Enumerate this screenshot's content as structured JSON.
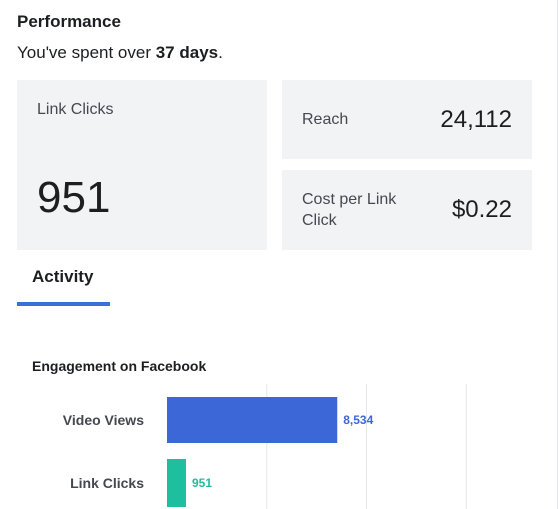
{
  "performance": {
    "title": "Performance",
    "spent_prefix": "You've spent over ",
    "spent_value": "37 days",
    "spent_suffix": "."
  },
  "metrics": {
    "link_clicks": {
      "label": "Link Clicks",
      "value": "951"
    },
    "reach": {
      "label": "Reach",
      "value": "24,112"
    },
    "cost_per_link_click": {
      "label": "Cost per Link Click",
      "value": "$0.22"
    }
  },
  "tabs": [
    {
      "label": "Activity",
      "active": true
    }
  ],
  "chart_data": {
    "type": "bar",
    "orientation": "horizontal",
    "title": "Engagement on Facebook",
    "categories": [
      "Video Views",
      "Link Clicks"
    ],
    "values": [
      8534,
      951
    ],
    "value_labels": [
      "8,534",
      "951"
    ],
    "colors": [
      "#3b68d6",
      "#1dbf9e"
    ],
    "xlim": [
      0,
      20000
    ],
    "grid": true
  }
}
